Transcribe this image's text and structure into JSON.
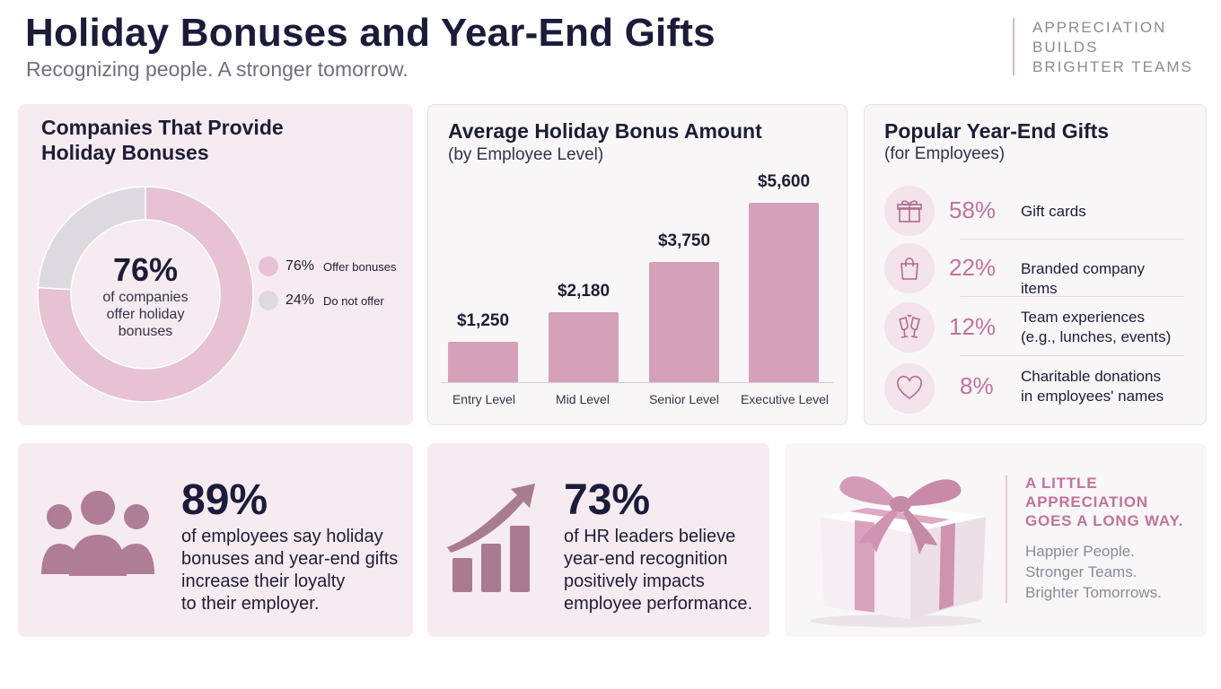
{
  "header": {
    "title": "Holiday Bonuses and Year-End Gifts",
    "subtitle": "Recognizing people. A stronger tomorrow.",
    "tagline": [
      "APPRECIATION",
      "BUILDS",
      "BRIGHTER TEAMS"
    ]
  },
  "colors": {
    "accent": "#c2739b",
    "bar": "#d4a1b9",
    "donut_main": "#e6c2d3",
    "donut_rest": "#dddadf"
  },
  "donut_card": {
    "title_line1": "Companies That Provide",
    "title_line2": "Holiday Bonuses",
    "center_value": "76%",
    "center_text": [
      "of companies",
      "offer holiday",
      "bonuses"
    ],
    "legend": [
      {
        "pct": "76%",
        "label": "Offer bonuses"
      },
      {
        "pct": "24%",
        "label": "Do not offer"
      }
    ]
  },
  "bar_card": {
    "title": "Average Holiday Bonus Amount",
    "subtitle": "(by Employee Level)"
  },
  "gifts_card": {
    "title": "Popular Year-End Gifts",
    "subtitle": "(for Employees)",
    "items": [
      {
        "icon": "gift-icon",
        "pct": "58%",
        "label_lines": [
          "Gift cards"
        ]
      },
      {
        "icon": "shopping-bag-icon",
        "pct": "22%",
        "label_lines": [
          "Branded company items"
        ]
      },
      {
        "icon": "champagne-glasses-icon",
        "pct": "12%",
        "label_lines": [
          "Team experiences",
          "(e.g., lunches, events)"
        ]
      },
      {
        "icon": "heart-icon",
        "pct": "8%",
        "label_lines": [
          "Charitable donations",
          "in employees' names"
        ]
      }
    ]
  },
  "stat_loyalty": {
    "icon": "people-group-icon",
    "value": "89%",
    "lines": [
      "of employees say holiday",
      "bonuses and year-end gifts",
      "increase their loyalty",
      "to their employer."
    ]
  },
  "stat_hr": {
    "icon": "growth-chart-icon",
    "value": "73%",
    "lines": [
      "of HR leaders believe",
      "year-end recognition",
      "positively impacts",
      "employee performance."
    ]
  },
  "quote": {
    "icon": "gift-box-icon",
    "head_lines": [
      "A LITTLE",
      "APPRECIATION",
      "GOES A LONG WAY."
    ],
    "body_lines": [
      "Happier People.",
      "Stronger Teams.",
      "Brighter Tomorrows."
    ]
  },
  "chart_data": [
    {
      "type": "pie",
      "title": "Companies That Provide Holiday Bonuses",
      "categories": [
        "Offer bonuses",
        "Do not offer"
      ],
      "values": [
        76,
        24
      ]
    },
    {
      "type": "bar",
      "title": "Average Holiday Bonus Amount",
      "subtitle": "(by Employee Level)",
      "categories": [
        "Entry Level",
        "Mid Level",
        "Senior Level",
        "Executive Level"
      ],
      "values": [
        1250,
        2180,
        3750,
        5600
      ],
      "value_labels": [
        "$1,250",
        "$2,180",
        "$3,750",
        "$5,600"
      ],
      "ylim": [
        0,
        5600
      ],
      "grid": false
    }
  ]
}
